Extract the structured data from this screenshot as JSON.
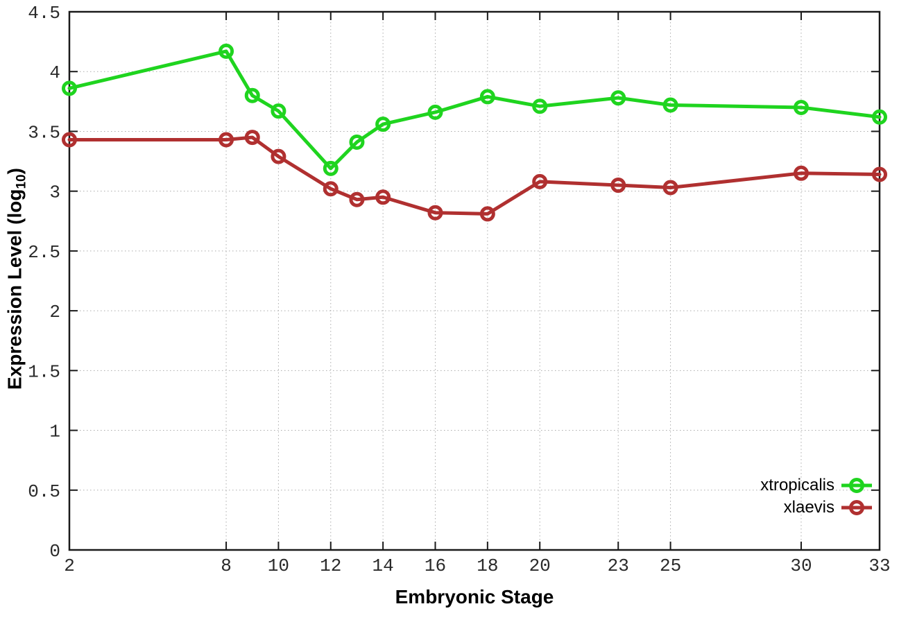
{
  "chart_data": {
    "type": "line",
    "title": "",
    "xlabel": "Embryonic Stage",
    "ylabel": "Expression Level (log10)",
    "ylabel_parts": {
      "prefix": "Expression Level (log",
      "sub": "10",
      "suffix": ")"
    },
    "x": [
      2,
      8,
      9,
      10,
      12,
      13,
      14,
      16,
      18,
      20,
      23,
      25,
      30,
      33
    ],
    "series": [
      {
        "name": "xtropicalis",
        "color": "#1fd41f",
        "values": [
          3.86,
          4.17,
          3.8,
          3.67,
          3.19,
          3.41,
          3.56,
          3.66,
          3.79,
          3.71,
          3.78,
          3.72,
          3.7,
          3.62
        ]
      },
      {
        "name": "xlaevis",
        "color": "#b03030",
        "values": [
          3.43,
          3.43,
          3.45,
          3.29,
          3.02,
          2.93,
          2.95,
          2.82,
          2.81,
          3.08,
          3.05,
          3.03,
          3.15,
          3.14
        ]
      }
    ],
    "xlim": [
      2,
      33
    ],
    "ylim": [
      0,
      4.5
    ],
    "xticks": [
      2,
      8,
      10,
      12,
      14,
      16,
      18,
      20,
      23,
      25,
      30,
      33
    ],
    "xtick_labels": [
      "2",
      "8",
      "10",
      "12",
      "14",
      "16",
      "18",
      "20",
      "23",
      "25",
      "30",
      "33"
    ],
    "yticks": [
      0,
      0.5,
      1,
      1.5,
      2,
      2.5,
      3,
      3.5,
      4,
      4.5
    ],
    "ytick_labels": [
      "0",
      "0.5",
      "1",
      "1.5",
      "2",
      "2.5",
      "3",
      "3.5",
      "4",
      "4.5"
    ],
    "grid": true,
    "grid_color": "#ababab",
    "border_color": "#1a1a1a",
    "tick_label_color": "#2a2a2a",
    "marker": "open-circle",
    "legend_position": "inside-bottom-right"
  }
}
